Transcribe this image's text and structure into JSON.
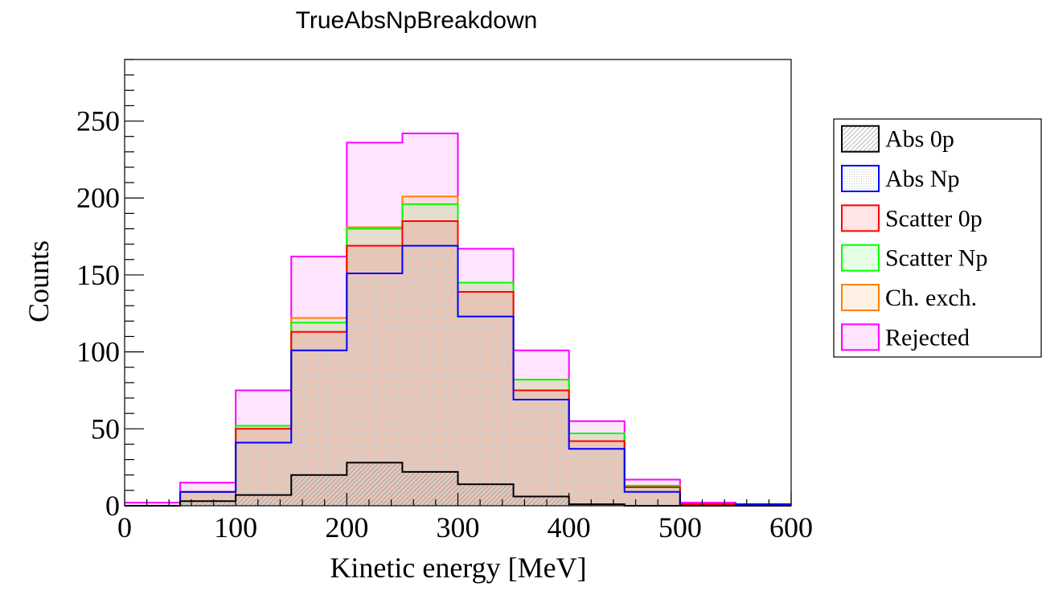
{
  "chart_data": {
    "type": "bar",
    "title": "TrueAbsNpBreakdown",
    "xlabel": "Kinetic energy [MeV]",
    "ylabel": "Counts",
    "xlim": [
      0,
      600
    ],
    "ylim": [
      0,
      290
    ],
    "x_ticks": [
      0,
      100,
      200,
      300,
      400,
      500,
      600
    ],
    "y_ticks": [
      0,
      50,
      100,
      150,
      200,
      250
    ],
    "x_tick_labels": [
      "0",
      "100",
      "200",
      "300",
      "400",
      "500",
      "600"
    ],
    "y_tick_labels": [
      "0",
      "50",
      "100",
      "150",
      "200",
      "250"
    ],
    "bin_edges": [
      0,
      50,
      100,
      150,
      200,
      250,
      300,
      350,
      400,
      450,
      500,
      550,
      600
    ],
    "stacked": true,
    "grid": false,
    "legend_position": "right",
    "series": [
      {
        "name": "Abs 0p",
        "color": "#000000",
        "values": [
          0,
          3,
          7,
          20,
          28,
          22,
          14,
          6,
          1,
          0,
          0,
          0
        ]
      },
      {
        "name": "Abs Np",
        "color": "#0000ff",
        "values": [
          0,
          6,
          34,
          81,
          123,
          147,
          109,
          63,
          36,
          9,
          0,
          1
        ]
      },
      {
        "name": "Scatter 0p",
        "color": "#ff0000",
        "values": [
          0,
          0,
          9,
          12,
          18,
          16,
          16,
          6,
          5,
          3,
          1,
          0
        ]
      },
      {
        "name": "Scatter Np",
        "color": "#00ff00",
        "values": [
          0,
          0,
          2,
          6,
          11,
          11,
          6,
          7,
          5,
          1,
          0,
          0
        ]
      },
      {
        "name": "Ch. exch.",
        "color": "#ff8000",
        "values": [
          0,
          0,
          0,
          3,
          1,
          5,
          0,
          0,
          0,
          0,
          0,
          0
        ]
      },
      {
        "name": "Rejected",
        "color": "#ff00ff",
        "values": [
          2,
          6,
          23,
          40,
          55,
          41,
          22,
          19,
          8,
          4,
          1,
          0
        ]
      }
    ]
  }
}
